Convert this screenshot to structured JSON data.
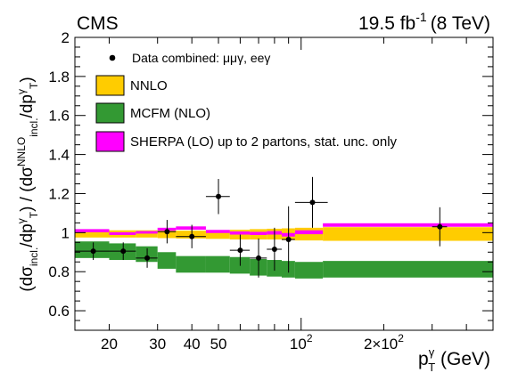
{
  "chart_data": {
    "type": "line",
    "experiment_label": "CMS",
    "lumi_label": {
      "value": "19.5 fb",
      "superscript": "-1",
      "energy": "(8 TeV)"
    },
    "xlabel": {
      "main": "p",
      "sup": "γ",
      "sub": "T",
      "unit": " (GeV)"
    },
    "ylabel": {
      "segments": [
        {
          "t": "(dσ"
        },
        {
          "t": "incl.",
          "sub": true
        },
        {
          "t": "/dp"
        },
        {
          "t": "γ",
          "sup": true
        },
        {
          "t": "T",
          "sub": true
        },
        {
          "t": ") / (dσ"
        },
        {
          "t": "NNLO",
          "sup": true
        },
        {
          "t": "incl.",
          "sub": true
        },
        {
          "t": "/dp"
        },
        {
          "t": "γ",
          "sup": true
        },
        {
          "t": "T",
          "sub": true
        },
        {
          "t": ")"
        }
      ]
    },
    "xscale": "log",
    "xlim": [
      15,
      500
    ],
    "ylim": [
      0.5,
      2.0
    ],
    "y_ticks": [
      "0.6",
      "0.8",
      "1",
      "1.2",
      "1.4",
      "1.6",
      "1.8",
      "2"
    ],
    "x_ticks": [
      {
        "value": 20,
        "label": "20"
      },
      {
        "value": 30,
        "label": "30"
      },
      {
        "value": 40,
        "label": "40"
      },
      {
        "value": 50,
        "label": "50"
      },
      {
        "value": 100,
        "label": "10",
        "sup": "2"
      },
      {
        "value": 200,
        "label": "2×10",
        "sup": "2"
      }
    ],
    "grid": false,
    "legend_position": "top-left",
    "legend": [
      {
        "key": "data",
        "label": "Data combined: μμγ, eeγ",
        "style": "marker"
      },
      {
        "key": "nnlo",
        "label": "NNLO",
        "style": "box",
        "color": "#ffcc00"
      },
      {
        "key": "mcfm",
        "label": "MCFM (NLO)",
        "style": "box",
        "color": "#339933"
      },
      {
        "key": "sherpa",
        "label": "SHERPA (LO) up to 2 partons, stat. unc. only",
        "style": "box",
        "color": "#ff00ff"
      }
    ],
    "series": [
      {
        "key": "nnlo",
        "label": "NNLO",
        "kind": "band",
        "color": "#ffcc00",
        "bins": [
          {
            "x": [
              15,
              20
            ],
            "low": 0.975,
            "high": 1.015
          },
          {
            "x": [
              20,
              25
            ],
            "low": 0.975,
            "high": 1.012
          },
          {
            "x": [
              25,
              30
            ],
            "low": 0.975,
            "high": 1.012
          },
          {
            "x": [
              30,
              35
            ],
            "low": 0.972,
            "high": 1.01
          },
          {
            "x": [
              35,
              45
            ],
            "low": 0.97,
            "high": 1.01
          },
          {
            "x": [
              45,
              55
            ],
            "low": 0.968,
            "high": 1.012
          },
          {
            "x": [
              55,
              65
            ],
            "low": 0.965,
            "high": 1.015
          },
          {
            "x": [
              65,
              75
            ],
            "low": 0.965,
            "high": 1.018
          },
          {
            "x": [
              75,
              85
            ],
            "low": 0.965,
            "high": 1.02
          },
          {
            "x": [
              85,
              95
            ],
            "low": 0.962,
            "high": 1.022
          },
          {
            "x": [
              95,
              120
            ],
            "low": 0.96,
            "high": 1.025
          },
          {
            "x": [
              120,
              500
            ],
            "low": 0.958,
            "high": 1.028
          }
        ]
      },
      {
        "key": "mcfm",
        "label": "MCFM (NLO)",
        "kind": "band",
        "color": "#339933",
        "bins": [
          {
            "x": [
              15,
              20
            ],
            "low": 0.87,
            "high": 0.955
          },
          {
            "x": [
              20,
              25
            ],
            "low": 0.86,
            "high": 0.945
          },
          {
            "x": [
              25,
              30
            ],
            "low": 0.85,
            "high": 0.93
          },
          {
            "x": [
              30,
              35
            ],
            "low": 0.815,
            "high": 0.9
          },
          {
            "x": [
              35,
              45
            ],
            "low": 0.795,
            "high": 0.88
          },
          {
            "x": [
              45,
              55
            ],
            "low": 0.795,
            "high": 0.88
          },
          {
            "x": [
              55,
              65
            ],
            "low": 0.79,
            "high": 0.875
          },
          {
            "x": [
              65,
              75
            ],
            "low": 0.78,
            "high": 0.865
          },
          {
            "x": [
              75,
              85
            ],
            "low": 0.775,
            "high": 0.86
          },
          {
            "x": [
              85,
              95
            ],
            "low": 0.77,
            "high": 0.855
          },
          {
            "x": [
              95,
              120
            ],
            "low": 0.765,
            "high": 0.85
          },
          {
            "x": [
              120,
              500
            ],
            "low": 0.77,
            "high": 0.855
          }
        ]
      },
      {
        "key": "sherpa",
        "label": "SHERPA (LO) up to 2 partons, stat. unc. only",
        "kind": "band",
        "color": "#ff00ff",
        "bins": [
          {
            "x": [
              15,
              20
            ],
            "low": 1.002,
            "high": 1.018
          },
          {
            "x": [
              20,
              25
            ],
            "low": 0.988,
            "high": 1.002
          },
          {
            "x": [
              25,
              30
            ],
            "low": 0.995,
            "high": 1.008
          },
          {
            "x": [
              30,
              35
            ],
            "low": 1.01,
            "high": 1.025
          },
          {
            "x": [
              35,
              45
            ],
            "low": 1.015,
            "high": 1.032
          },
          {
            "x": [
              45,
              55
            ],
            "low": 0.998,
            "high": 1.014
          },
          {
            "x": [
              55,
              65
            ],
            "low": 0.99,
            "high": 1.006
          },
          {
            "x": [
              65,
              75
            ],
            "low": 0.988,
            "high": 1.004
          },
          {
            "x": [
              75,
              85
            ],
            "low": 0.99,
            "high": 1.008
          },
          {
            "x": [
              85,
              95
            ],
            "low": 0.98,
            "high": 0.998
          },
          {
            "x": [
              95,
              120
            ],
            "low": 0.992,
            "high": 1.012
          },
          {
            "x": [
              120,
              500
            ],
            "low": 1.03,
            "high": 1.048
          }
        ]
      },
      {
        "key": "data",
        "label": "Data combined: μμγ, eeγ",
        "kind": "points",
        "color": "#000000",
        "points": [
          {
            "x": 17.5,
            "y": 0.905,
            "x_lo": 15,
            "x_hi": 20,
            "y_err": 0.045
          },
          {
            "x": 22.5,
            "y": 0.905,
            "x_lo": 20,
            "x_hi": 25,
            "y_err": 0.045
          },
          {
            "x": 27.5,
            "y": 0.87,
            "x_lo": 25,
            "x_hi": 30,
            "y_err": 0.05
          },
          {
            "x": 32.5,
            "y": 1.005,
            "x_lo": 30,
            "x_hi": 35,
            "y_err": 0.06
          },
          {
            "x": 40,
            "y": 0.98,
            "x_lo": 35,
            "x_hi": 45,
            "y_err": 0.06
          },
          {
            "x": 50,
            "y": 1.185,
            "x_lo": 45,
            "x_hi": 55,
            "y_err": 0.09
          },
          {
            "x": 60,
            "y": 0.91,
            "x_lo": 55,
            "x_hi": 65,
            "y_err": 0.08
          },
          {
            "x": 70,
            "y": 0.87,
            "x_lo": 65,
            "x_hi": 75,
            "y_err": 0.1
          },
          {
            "x": 80,
            "y": 0.915,
            "x_lo": 75,
            "x_hi": 85,
            "y_err": 0.11
          },
          {
            "x": 90,
            "y": 0.965,
            "x_lo": 85,
            "x_hi": 95,
            "y_err": 0.17
          },
          {
            "x": 110,
            "y": 1.155,
            "x_lo": 95,
            "x_hi": 125,
            "y_err": 0.13
          },
          {
            "x": 320,
            "y": 1.03,
            "x_lo": 300,
            "x_hi": 340,
            "y_err": 0.1
          }
        ]
      }
    ]
  }
}
